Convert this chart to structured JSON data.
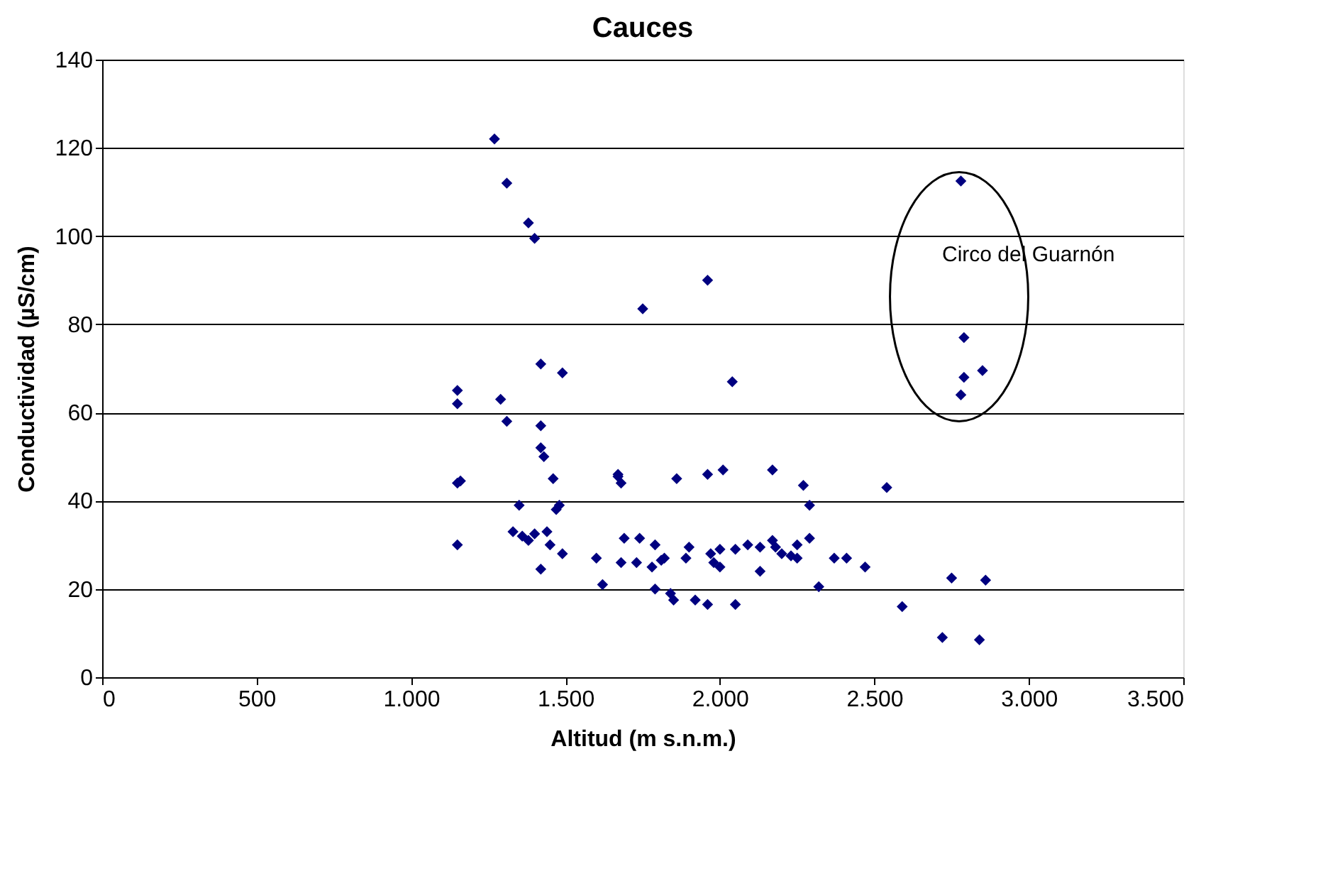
{
  "chart_data": {
    "type": "scatter",
    "title": "Cauces",
    "xlabel": "Altitud (m s.n.m.)",
    "ylabel": "Conductividad (µS/cm)",
    "x": [
      1150,
      1150,
      1150,
      1160,
      1150,
      1270,
      1310,
      1290,
      1310,
      1380,
      1400,
      1420,
      1490,
      1420,
      1420,
      1430,
      1460,
      1350,
      1480,
      1470,
      1330,
      1360,
      1380,
      1400,
      1440,
      1450,
      1490,
      1420,
      1750,
      1960,
      2040,
      1600,
      1620,
      1670,
      1680,
      1670,
      1690,
      1680,
      1740,
      1730,
      1790,
      1780,
      1790,
      1820,
      1810,
      1840,
      1850,
      1860,
      1890,
      1900,
      1920,
      1960,
      1960,
      1980,
      1970,
      2000,
      2000,
      2010,
      2050,
      2050,
      2090,
      2130,
      2130,
      2170,
      2170,
      2180,
      2200,
      2230,
      2250,
      2250,
      2270,
      2290,
      2290,
      2320,
      2370,
      2410,
      2470,
      2540,
      2590,
      2720,
      2750,
      2840,
      2860,
      2780,
      2790,
      2790,
      2780,
      2850
    ],
    "series": [
      {
        "color": "#000080",
        "values": [
          65,
          62,
          44,
          44.5,
          30,
          122,
          112,
          63,
          58,
          103,
          99.5,
          71,
          69,
          57,
          52,
          50,
          45,
          39,
          39,
          38,
          33,
          32,
          31,
          32.5,
          33,
          30,
          28,
          24.5,
          83.5,
          90,
          67,
          27,
          21,
          46,
          44,
          45.5,
          31.5,
          26,
          31.5,
          26,
          30,
          25,
          20,
          27,
          26.5,
          19,
          17.5,
          45,
          27,
          29.5,
          17.5,
          16.5,
          46,
          26,
          28,
          29,
          25,
          47,
          16.5,
          29,
          30,
          29.5,
          24,
          31,
          47,
          29.5,
          28,
          27.5,
          30,
          27,
          43.5,
          39,
          31.5,
          20.5,
          27,
          27,
          25,
          43,
          16,
          9,
          22.5,
          8.5,
          22,
          112.5,
          77,
          68,
          64,
          69.5
        ]
      }
    ],
    "xlim": [
      0,
      3500
    ],
    "xticks": [
      0,
      500,
      {
        "value": 1000,
        "label": "1.000"
      },
      {
        "value": 1500,
        "label": "1.500"
      },
      {
        "value": 2000,
        "label": "2.000"
      },
      {
        "value": 2500,
        "label": "2.500"
      },
      {
        "value": 3000,
        "label": "3.000"
      },
      {
        "value": 3500,
        "label": "3.500"
      }
    ],
    "ylim": [
      0,
      140
    ],
    "yticks": [
      0,
      20,
      40,
      60,
      80,
      100,
      120,
      140
    ],
    "grid": "y",
    "marker": "diamond",
    "legend": false,
    "annotations": [
      "Circo del Guarnón"
    ]
  }
}
